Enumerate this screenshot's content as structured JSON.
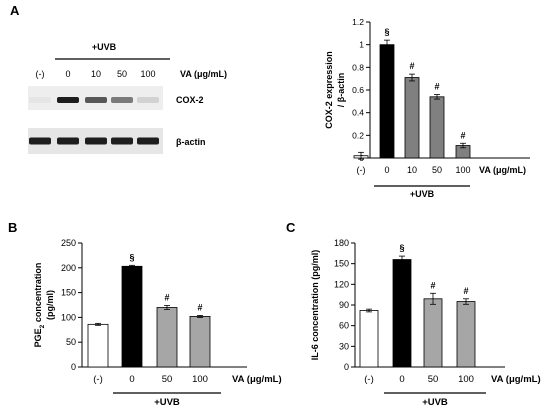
{
  "panels": {
    "A": "A",
    "B": "B",
    "C": "C"
  },
  "western_blot": {
    "treatment_label": "+UVB",
    "lane_labels": [
      "(-)",
      "0",
      "10",
      "50",
      "100"
    ],
    "dose_label": "VA (μg/mL)",
    "bands": [
      {
        "name": "COX-2",
        "intensities": [
          0.03,
          1.0,
          0.72,
          0.55,
          0.12
        ]
      },
      {
        "name": "β-actin",
        "intensities": [
          1.0,
          1.0,
          1.0,
          1.0,
          1.0
        ]
      }
    ]
  },
  "chart_data": [
    {
      "panel": "A",
      "type": "bar",
      "categories": [
        "(-)",
        "0",
        "10",
        "50",
        "100"
      ],
      "values": [
        0.02,
        1.0,
        0.71,
        0.54,
        0.11
      ],
      "errors": [
        0.03,
        0.04,
        0.03,
        0.02,
        0.02
      ],
      "annotations": [
        "",
        "§",
        "#",
        "#",
        "#"
      ],
      "bar_colors": [
        "#ffffff",
        "#000000",
        "#808080",
        "#808080",
        "#808080"
      ],
      "ylabel": "COX-2 expression / β-actin",
      "ylim": [
        0,
        1.2
      ],
      "yticks": [
        0,
        0.2,
        0.4,
        0.6,
        0.8,
        1,
        1.2
      ],
      "ytick_labels": [
        "0",
        "0.2",
        "0.4",
        "0.6",
        "0.8",
        "1",
        "1.2"
      ],
      "xlabel": "VA (μg/mL)",
      "group_label": "+UVB"
    },
    {
      "panel": "B",
      "type": "bar",
      "categories": [
        "(-)",
        "0",
        "50",
        "100"
      ],
      "values": [
        86,
        203,
        120,
        102
      ],
      "errors": [
        2,
        2,
        4,
        2
      ],
      "annotations": [
        "",
        "§",
        "#",
        "#"
      ],
      "bar_colors": [
        "#ffffff",
        "#000000",
        "#a6a6a6",
        "#a6a6a6"
      ],
      "ylabel": "PGE2 concentration (pg/ml)",
      "ylim": [
        0,
        250
      ],
      "yticks": [
        0,
        50,
        100,
        150,
        200,
        250
      ],
      "ytick_labels": [
        "0",
        "50",
        "100",
        "150",
        "200",
        "250"
      ],
      "xlabel": "VA (μg/mL)",
      "group_label": "+UVB"
    },
    {
      "panel": "C",
      "type": "bar",
      "categories": [
        "(-)",
        "0",
        "50",
        "100"
      ],
      "values": [
        82,
        156,
        99,
        95
      ],
      "errors": [
        2,
        5,
        8,
        4
      ],
      "annotations": [
        "",
        "§",
        "#",
        "#"
      ],
      "bar_colors": [
        "#ffffff",
        "#000000",
        "#a6a6a6",
        "#a6a6a6"
      ],
      "ylabel": "IL-6 concentration (pg/ml)",
      "ylim": [
        0,
        180
      ],
      "yticks": [
        0,
        30,
        60,
        90,
        120,
        150,
        180
      ],
      "ytick_labels": [
        "0",
        "30",
        "60",
        "90",
        "120",
        "150",
        "180"
      ],
      "xlabel": "VA (μg/mL)",
      "group_label": "+UVB"
    }
  ]
}
